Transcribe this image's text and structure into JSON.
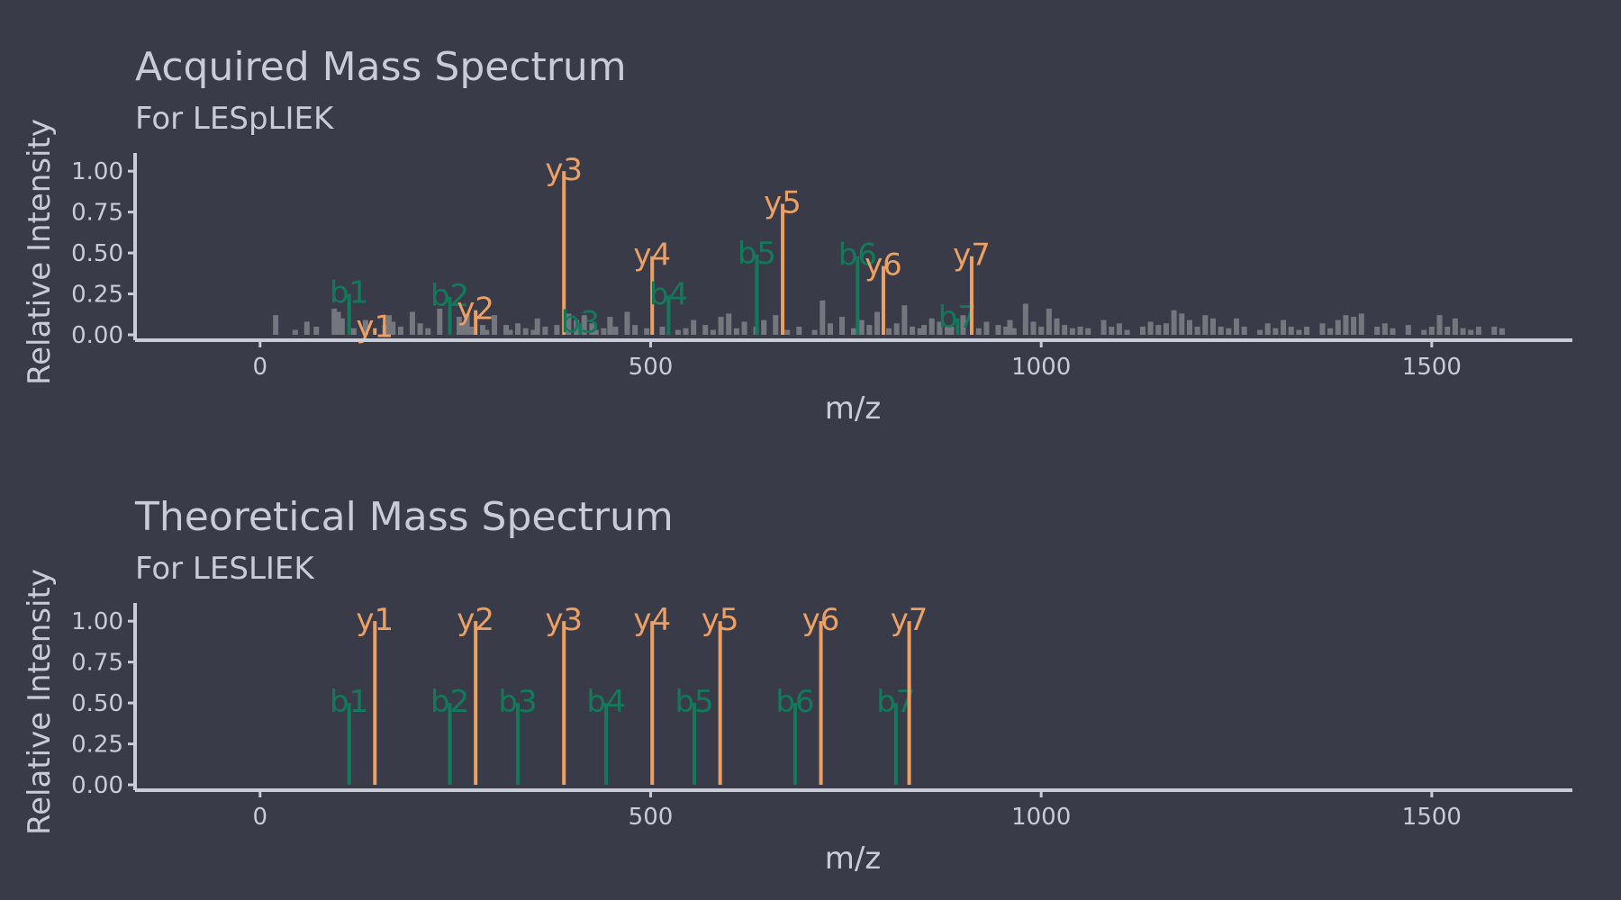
{
  "colors": {
    "background": "#393c48",
    "text": "#c8ccd6",
    "b_ion": "#127a5a",
    "y_ion": "#eca064",
    "noise": "#74777e"
  },
  "chart_data": [
    {
      "type": "bar",
      "title": "Acquired Mass Spectrum",
      "subtitle": "For LESpLIEK",
      "xlabel": "m/z",
      "ylabel": "Relative Intensity",
      "xlim": [
        -160,
        1680
      ],
      "ylim": [
        0,
        1.1
      ],
      "xticks": [
        0,
        500,
        1000,
        1500
      ],
      "yticks": [
        "0.00",
        "0.25",
        "0.50",
        "0.75",
        "1.00"
      ],
      "grid": false,
      "peaks": [
        {
          "label": "b1",
          "ion": "b",
          "mz": 114,
          "intensity": 0.25
        },
        {
          "label": "y1",
          "ion": "y",
          "mz": 147,
          "intensity": 0.04
        },
        {
          "label": "b2",
          "ion": "b",
          "mz": 243,
          "intensity": 0.23
        },
        {
          "label": "y2",
          "ion": "y",
          "mz": 276,
          "intensity": 0.15
        },
        {
          "label": "y3",
          "ion": "y",
          "mz": 389,
          "intensity": 1.0
        },
        {
          "label": "b3",
          "ion": "b",
          "mz": 410,
          "intensity": 0.07
        },
        {
          "label": "y4",
          "ion": "y",
          "mz": 502,
          "intensity": 0.48
        },
        {
          "label": "b4",
          "ion": "b",
          "mz": 523,
          "intensity": 0.24
        },
        {
          "label": "b5",
          "ion": "b",
          "mz": 636,
          "intensity": 0.49
        },
        {
          "label": "y5",
          "ion": "y",
          "mz": 669,
          "intensity": 0.8
        },
        {
          "label": "b6",
          "ion": "b",
          "mz": 765,
          "intensity": 0.48
        },
        {
          "label": "y6",
          "ion": "y",
          "mz": 798,
          "intensity": 0.42
        },
        {
          "label": "b7",
          "ion": "b",
          "mz": 893,
          "intensity": 0.1
        },
        {
          "label": "y7",
          "ion": "y",
          "mz": 911,
          "intensity": 0.48
        }
      ],
      "noise": {
        "mz": [
          20,
          45,
          60,
          72,
          95,
          100,
          105,
          120,
          135,
          160,
          165,
          170,
          180,
          195,
          205,
          215,
          230,
          255,
          260,
          265,
          270,
          285,
          290,
          300,
          315,
          320,
          330,
          340,
          350,
          355,
          365,
          380,
          395,
          405,
          415,
          425,
          430,
          440,
          448,
          455,
          470,
          480,
          495,
          515,
          535,
          545,
          555,
          570,
          580,
          590,
          600,
          610,
          620,
          635,
          645,
          660,
          675,
          690,
          710,
          720,
          730,
          745,
          760,
          770,
          780,
          790,
          805,
          815,
          825,
          835,
          845,
          850,
          860,
          870,
          880,
          885,
          900,
          920,
          930,
          945,
          955,
          960,
          965,
          980,
          990,
          1000,
          1010,
          1020,
          1030,
          1040,
          1050,
          1060,
          1080,
          1090,
          1100,
          1110,
          1130,
          1140,
          1150,
          1160,
          1170,
          1180,
          1190,
          1200,
          1210,
          1220,
          1230,
          1240,
          1250,
          1260,
          1280,
          1290,
          1300,
          1310,
          1320,
          1330,
          1340,
          1360,
          1370,
          1380,
          1390,
          1400,
          1410,
          1430,
          1440,
          1450,
          1470,
          1490,
          1500,
          1510,
          1520,
          1530,
          1540,
          1550,
          1560,
          1580,
          1590
        ],
        "intensity": [
          0.12,
          0.03,
          0.08,
          0.05,
          0.16,
          0.14,
          0.1,
          0.04,
          0.09,
          0.06,
          0.12,
          0.08,
          0.05,
          0.14,
          0.07,
          0.04,
          0.16,
          0.11,
          0.07,
          0.13,
          0.05,
          0.06,
          0.03,
          0.12,
          0.06,
          0.03,
          0.07,
          0.04,
          0.03,
          0.1,
          0.05,
          0.06,
          0.13,
          0.09,
          0.12,
          0.07,
          0.03,
          0.04,
          0.11,
          0.05,
          0.14,
          0.06,
          0.04,
          0.05,
          0.03,
          0.04,
          0.09,
          0.06,
          0.03,
          0.11,
          0.13,
          0.04,
          0.08,
          0.05,
          0.09,
          0.12,
          0.03,
          0.05,
          0.03,
          0.21,
          0.07,
          0.11,
          0.04,
          0.09,
          0.06,
          0.14,
          0.04,
          0.07,
          0.18,
          0.05,
          0.04,
          0.06,
          0.1,
          0.08,
          0.05,
          0.05,
          0.12,
          0.04,
          0.08,
          0.06,
          0.05,
          0.09,
          0.04,
          0.19,
          0.08,
          0.05,
          0.16,
          0.1,
          0.06,
          0.04,
          0.05,
          0.04,
          0.09,
          0.05,
          0.07,
          0.03,
          0.05,
          0.08,
          0.06,
          0.07,
          0.15,
          0.13,
          0.09,
          0.05,
          0.12,
          0.1,
          0.05,
          0.04,
          0.1,
          0.05,
          0.03,
          0.07,
          0.04,
          0.09,
          0.05,
          0.03,
          0.05,
          0.07,
          0.04,
          0.09,
          0.12,
          0.11,
          0.13,
          0.05,
          0.07,
          0.04,
          0.06,
          0.03,
          0.05,
          0.12,
          0.05,
          0.1,
          0.04,
          0.03,
          0.05,
          0.05,
          0.04
        ]
      }
    },
    {
      "type": "bar",
      "title": "Theoretical Mass Spectrum",
      "subtitle": "For LESLIEK",
      "xlabel": "m/z",
      "ylabel": "Relative Intensity",
      "xlim": [
        -160,
        1680
      ],
      "ylim": [
        0,
        1.1
      ],
      "xticks": [
        0,
        500,
        1000,
        1500
      ],
      "yticks": [
        "0.00",
        "0.25",
        "0.50",
        "0.75",
        "1.00"
      ],
      "grid": false,
      "peaks": [
        {
          "label": "b1",
          "ion": "b",
          "mz": 114,
          "intensity": 0.5
        },
        {
          "label": "y1",
          "ion": "y",
          "mz": 147,
          "intensity": 1.0
        },
        {
          "label": "b2",
          "ion": "b",
          "mz": 243,
          "intensity": 0.5
        },
        {
          "label": "y2",
          "ion": "y",
          "mz": 276,
          "intensity": 1.0
        },
        {
          "label": "b3",
          "ion": "b",
          "mz": 330,
          "intensity": 0.5
        },
        {
          "label": "y3",
          "ion": "y",
          "mz": 389,
          "intensity": 1.0
        },
        {
          "label": "b4",
          "ion": "b",
          "mz": 443,
          "intensity": 0.5
        },
        {
          "label": "y4",
          "ion": "y",
          "mz": 502,
          "intensity": 1.0
        },
        {
          "label": "b5",
          "ion": "b",
          "mz": 556,
          "intensity": 0.5
        },
        {
          "label": "y5",
          "ion": "y",
          "mz": 589,
          "intensity": 1.0
        },
        {
          "label": "b6",
          "ion": "b",
          "mz": 685,
          "intensity": 0.5
        },
        {
          "label": "y6",
          "ion": "y",
          "mz": 718,
          "intensity": 1.0
        },
        {
          "label": "b7",
          "ion": "b",
          "mz": 814,
          "intensity": 0.5
        },
        {
          "label": "y7",
          "ion": "y",
          "mz": 831,
          "intensity": 1.0
        }
      ]
    }
  ]
}
